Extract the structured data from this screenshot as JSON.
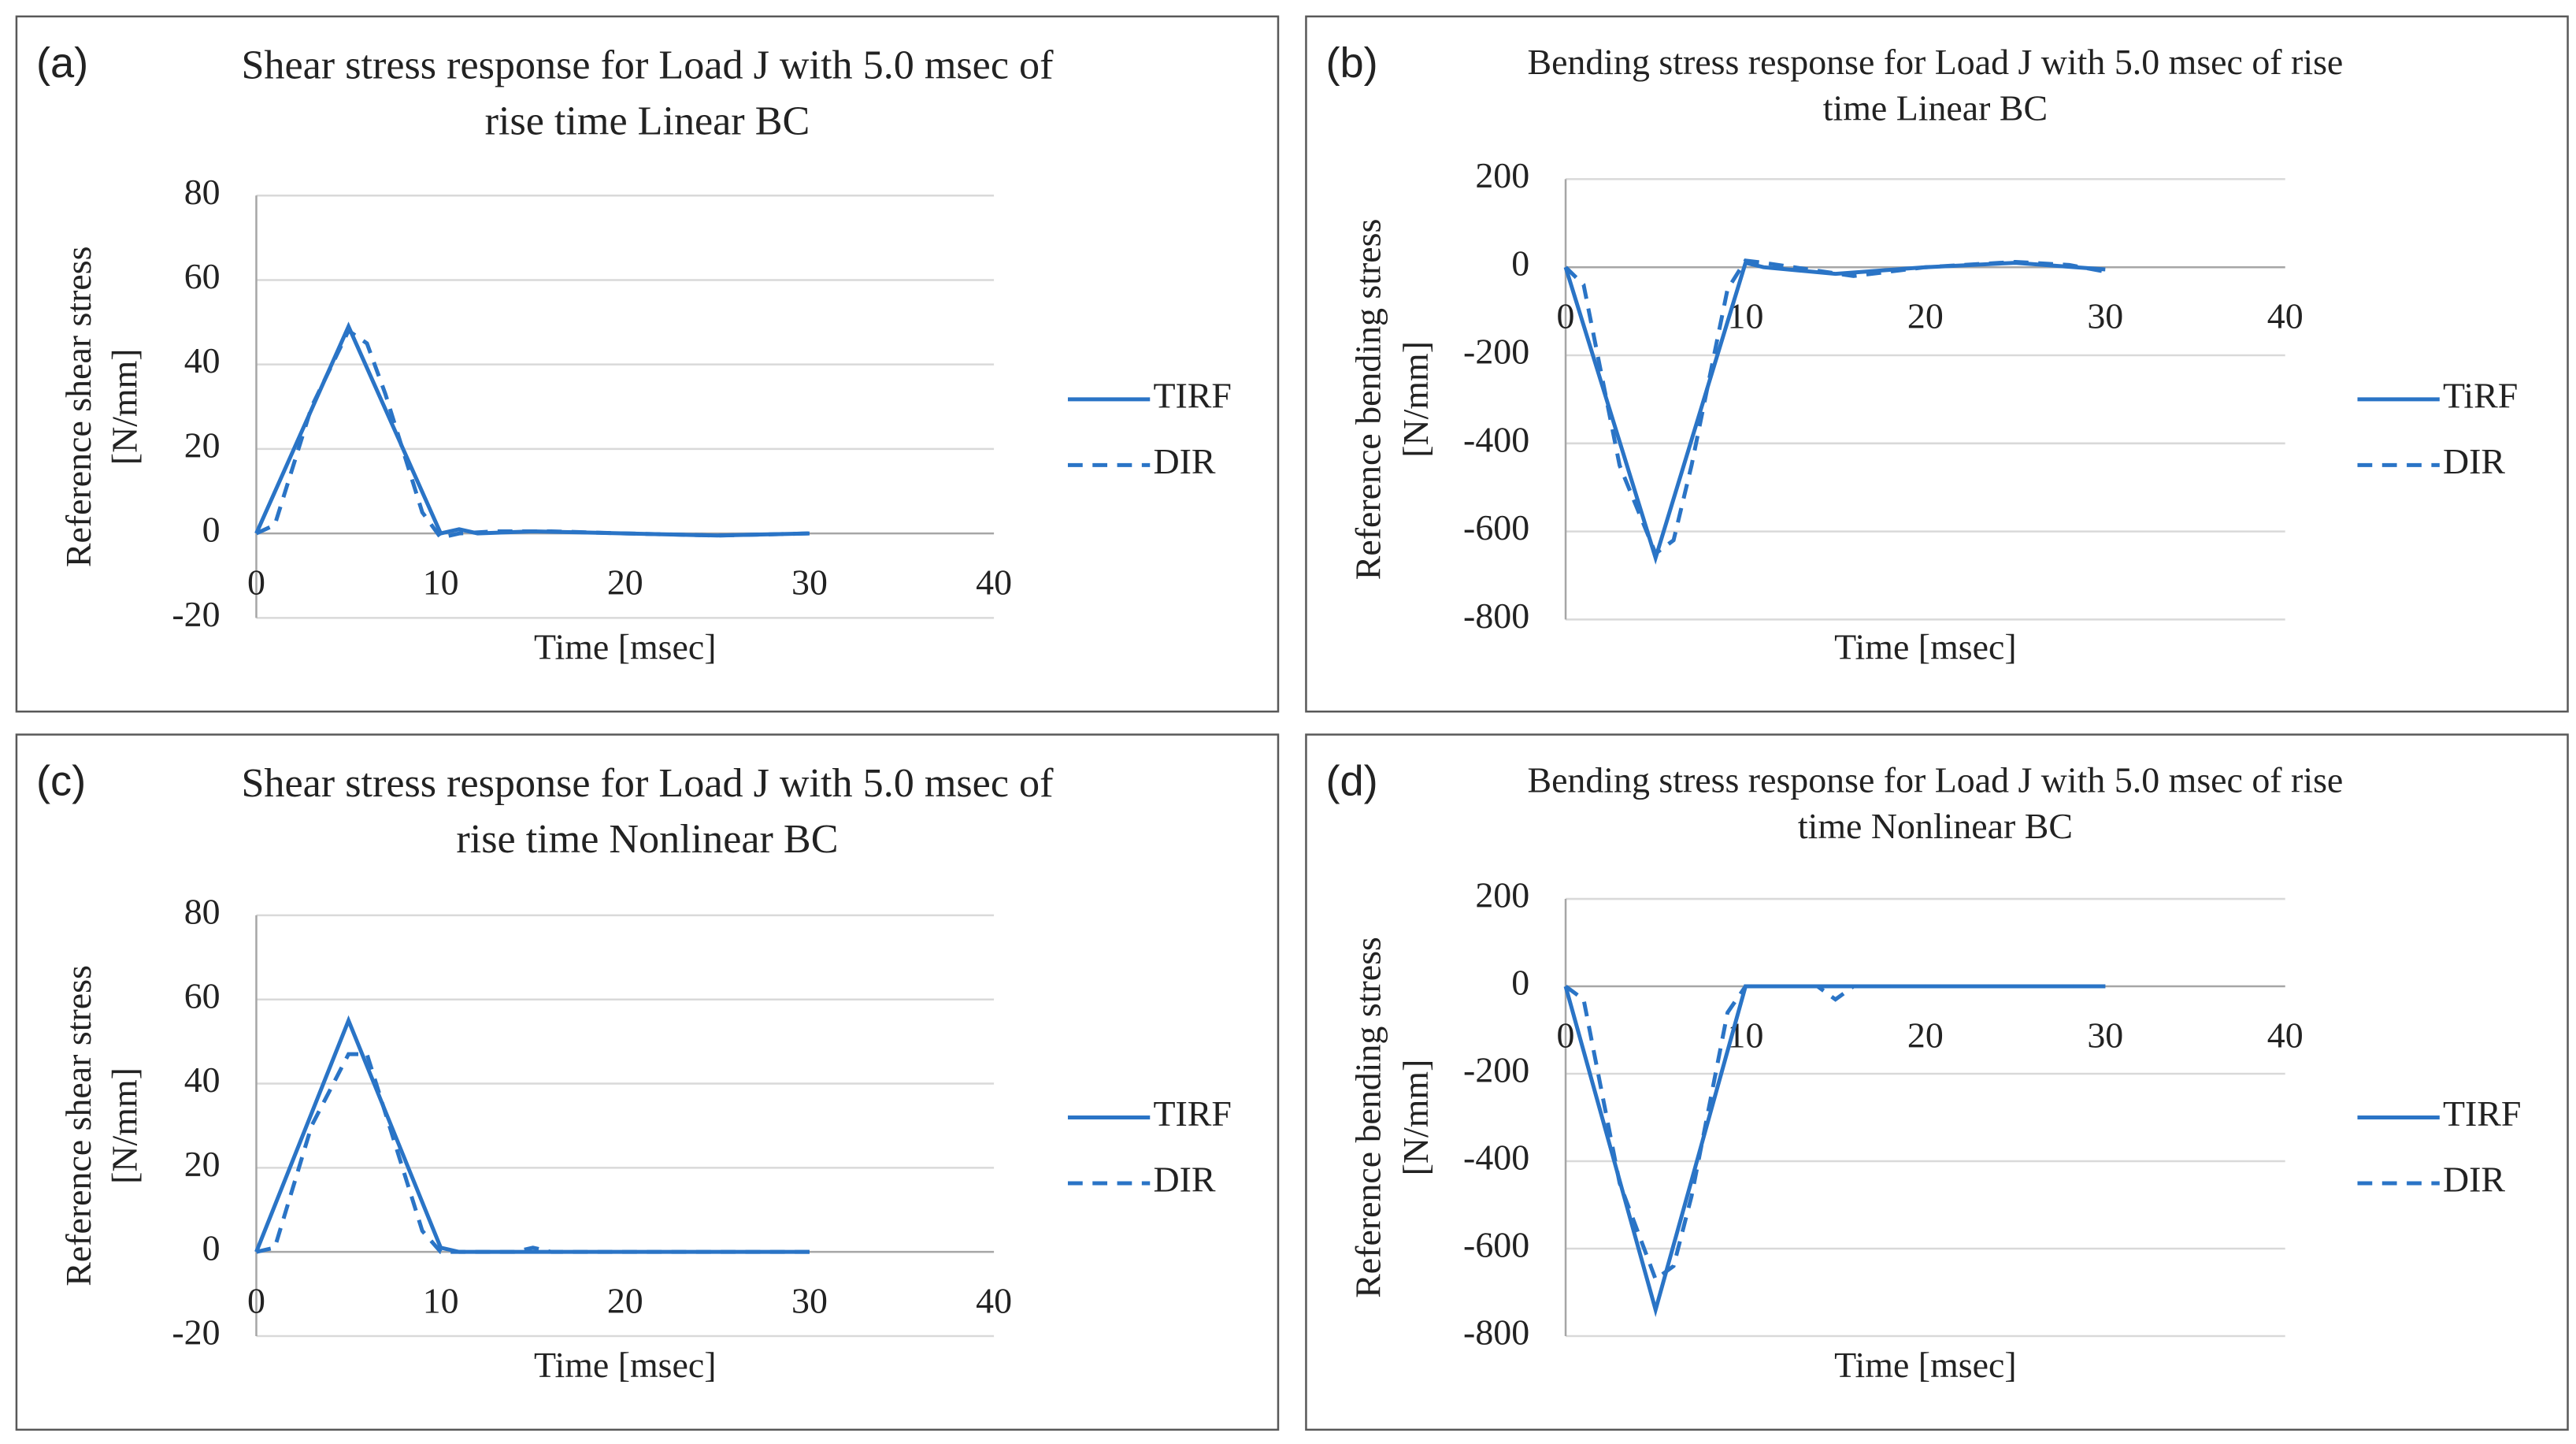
{
  "chart_data": [
    {
      "type": "line",
      "label": "(a)",
      "title": [
        "Shear stress response for Load J with 5.0 msec of",
        "rise time Linear BC"
      ],
      "xlabel": "Time [msec]",
      "ylabel": [
        "Reference shear stress",
        "[N/mm]"
      ],
      "xlim": [
        0,
        40
      ],
      "xticks": [
        0,
        10,
        20,
        30,
        40
      ],
      "ylim": [
        -20,
        80
      ],
      "yticks": [
        -20,
        0,
        20,
        40,
        60,
        80
      ],
      "grid": true,
      "series": [
        {
          "name": "TIRF",
          "color": "#2a74c6",
          "line_style": "solid",
          "x": [
            0,
            5,
            10,
            11,
            12,
            15,
            20,
            25,
            30
          ],
          "values": [
            0,
            49,
            0,
            1,
            0,
            0.5,
            0,
            -0.5,
            0
          ]
        },
        {
          "name": "DIR",
          "color": "#2a74c6",
          "line_style": "dashed",
          "x": [
            0,
            1,
            3,
            5,
            6,
            7,
            9,
            10,
            11,
            13,
            16,
            20,
            25,
            30
          ],
          "values": [
            0,
            2,
            30,
            48,
            45,
            33,
            5,
            -1,
            0,
            0.5,
            0.5,
            0,
            -0.5,
            0
          ]
        }
      ]
    },
    {
      "type": "line",
      "label": "(b)",
      "title": [
        "Bending stress response for Load J with 5.0 msec of rise",
        "time Linear BC"
      ],
      "xlabel": "Time [msec]",
      "ylabel": [
        "Reference bending stress",
        "[N/mm]"
      ],
      "xlim": [
        0,
        40
      ],
      "xticks": [
        0,
        10,
        20,
        30,
        40
      ],
      "ylim": [
        -800,
        200
      ],
      "yticks": [
        -800,
        -600,
        -400,
        -200,
        0,
        200
      ],
      "grid": true,
      "series": [
        {
          "name": "TiRF",
          "color": "#2a74c6",
          "line_style": "solid",
          "x": [
            0,
            5,
            10,
            11,
            15,
            20,
            25,
            30
          ],
          "values": [
            0,
            -660,
            10,
            0,
            -15,
            0,
            10,
            -5
          ]
        },
        {
          "name": "DIR",
          "color": "#2a74c6",
          "line_style": "dashed",
          "x": [
            0,
            1,
            3,
            5,
            6,
            7,
            9,
            10,
            11,
            16,
            20,
            25,
            28,
            30
          ],
          "values": [
            0,
            -40,
            -450,
            -650,
            -620,
            -450,
            -50,
            15,
            10,
            -20,
            0,
            12,
            5,
            -10
          ]
        }
      ]
    },
    {
      "type": "line",
      "label": "(c)",
      "title": [
        "Shear stress response for Load J with 5.0 msec of",
        "rise time Nonlinear BC"
      ],
      "xlabel": "Time [msec]",
      "ylabel": [
        "Reference shear stress",
        "[N/mm]"
      ],
      "xlim": [
        0,
        40
      ],
      "xticks": [
        0,
        10,
        20,
        30,
        40
      ],
      "ylim": [
        -20,
        80
      ],
      "yticks": [
        -20,
        0,
        20,
        40,
        60,
        80
      ],
      "grid": true,
      "series": [
        {
          "name": "TIRF",
          "color": "#2a74c6",
          "line_style": "solid",
          "x": [
            0,
            5,
            10,
            11,
            15,
            20,
            30
          ],
          "values": [
            0,
            55,
            1,
            0,
            0,
            0,
            0
          ]
        },
        {
          "name": "DIR",
          "color": "#2a74c6",
          "line_style": "dashed",
          "x": [
            0,
            1,
            3,
            5,
            6,
            7,
            9,
            10,
            14,
            15,
            16,
            20,
            30
          ],
          "values": [
            0,
            1,
            30,
            47,
            47,
            33,
            5,
            0,
            0,
            1,
            0,
            0,
            0
          ]
        }
      ]
    },
    {
      "type": "line",
      "label": "(d)",
      "title": [
        "Bending stress response for Load J with 5.0 msec of rise",
        "time Nonlinear BC"
      ],
      "xlabel": "Time [msec]",
      "ylabel": [
        "Reference bending stress",
        "[N/mm]"
      ],
      "xlim": [
        0,
        40
      ],
      "xticks": [
        0,
        10,
        20,
        30,
        40
      ],
      "ylim": [
        -800,
        200
      ],
      "yticks": [
        -800,
        -600,
        -400,
        -200,
        0,
        200
      ],
      "grid": true,
      "series": [
        {
          "name": "TIRF",
          "color": "#2a74c6",
          "line_style": "solid",
          "x": [
            0,
            5,
            10,
            15,
            20,
            30
          ],
          "values": [
            0,
            -740,
            0,
            0,
            0,
            0
          ]
        },
        {
          "name": "DIR",
          "color": "#2a74c6",
          "line_style": "dashed",
          "x": [
            0,
            1,
            3,
            5,
            6,
            7,
            9,
            10,
            14,
            15,
            16,
            20,
            30
          ],
          "values": [
            0,
            -30,
            -450,
            -670,
            -640,
            -480,
            -60,
            0,
            0,
            -30,
            0,
            0,
            0
          ]
        }
      ]
    }
  ]
}
